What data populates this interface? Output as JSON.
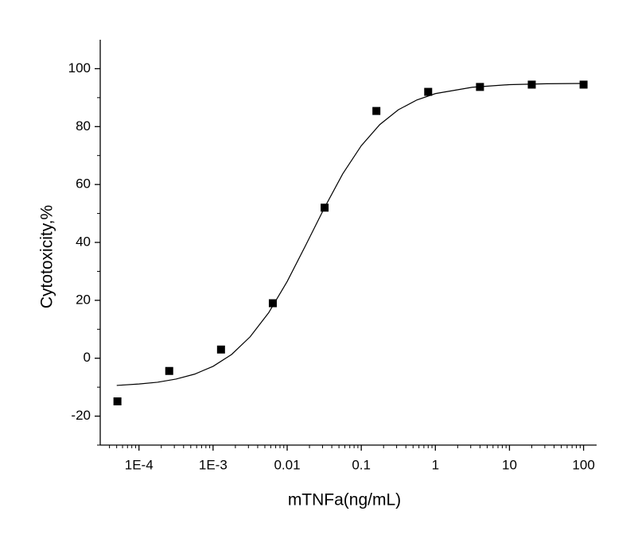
{
  "chart_data": {
    "type": "scatter",
    "x_label": "mTNFa(ng/mL)",
    "y_label": "Cytotoxicity,%",
    "xscale": "log",
    "xlim": [
      3e-05,
      150
    ],
    "ylim": [
      -30,
      110
    ],
    "xticks": [
      {
        "value": 0.0001,
        "label": "1E-4"
      },
      {
        "value": 0.001,
        "label": "1E-3"
      },
      0.01,
      0.1,
      1,
      10,
      100
    ],
    "yticks": [
      -20,
      0,
      20,
      40,
      60,
      80,
      100
    ],
    "series": [
      {
        "kind": "points",
        "marker": "square",
        "color": "#000000",
        "x": [
          5.12e-05,
          0.000256,
          0.00128,
          0.0064,
          0.032,
          0.16,
          0.8,
          4,
          20,
          100
        ],
        "values": [
          -14.9,
          -4.4,
          3,
          19,
          52,
          85.4,
          92,
          93.7,
          94.5,
          94.5
        ]
      },
      {
        "kind": "line",
        "color": "#000000",
        "x": [
          5.01e-05,
          0.0001,
          0.0001778,
          0.0003162,
          0.0005623,
          0.001,
          0.001778,
          0.003162,
          0.005623,
          0.01,
          0.01778,
          0.03162,
          0.05623,
          0.1,
          0.1778,
          0.3162,
          0.5623,
          1,
          3.162,
          10,
          31.62,
          100
        ],
        "values": [
          -9.4,
          -8.9,
          -8.3,
          -7.2,
          -5.5,
          -2.8,
          1.3,
          7.4,
          15.7,
          26.5,
          39.0,
          51.8,
          63.7,
          73.4,
          80.7,
          85.8,
          89.2,
          91.4,
          93.6,
          94.5,
          94.8,
          94.9
        ]
      }
    ]
  }
}
